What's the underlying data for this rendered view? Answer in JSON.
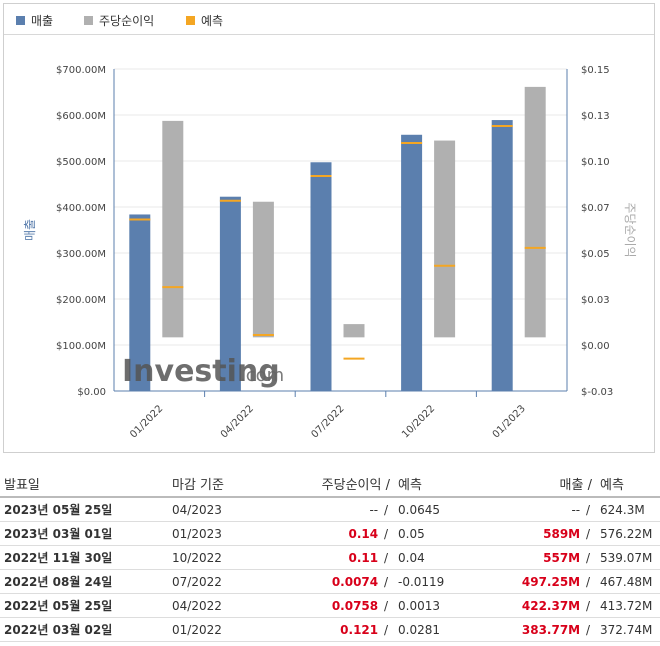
{
  "legend": [
    {
      "label": "매출",
      "color": "#5b7fae"
    },
    {
      "label": "주당순이익",
      "color": "#b0b0b0"
    },
    {
      "label": "예측",
      "color": "#f4a623"
    }
  ],
  "watermark": {
    "text": "Investing",
    "suffix": ".com"
  },
  "chart_data": {
    "type": "bar",
    "categories": [
      "01/2022",
      "04/2022",
      "07/2022",
      "10/2022",
      "01/2023"
    ],
    "left_axis": {
      "title": "매출",
      "ticks": [
        "$700.00M",
        "$600.00M",
        "$500.00M",
        "$400.00M",
        "$300.00M",
        "$200.00M",
        "$100.00M",
        "$0.00"
      ],
      "ylim": [
        0,
        700
      ]
    },
    "right_axis": {
      "title": "주당순이익",
      "ticks": [
        "$0.15",
        "$0.13",
        "$0.10",
        "$0.07",
        "$0.05",
        "$0.03",
        "$0.00",
        "$-0.03"
      ],
      "ylim": [
        -0.03,
        0.15
      ]
    },
    "series": [
      {
        "name": "매출",
        "axis": "left",
        "color": "#5b7fae",
        "values": [
          383.77,
          422.37,
          497.25,
          557,
          589
        ]
      },
      {
        "name": "주당순이익",
        "axis": "right",
        "color": "#b0b0b0",
        "values": [
          0.121,
          0.0758,
          0.0074,
          0.11,
          0.14
        ]
      },
      {
        "name": "예측",
        "axis": "left",
        "color": "#f4a623",
        "values": [
          372.74,
          413.72,
          467.48,
          539.07,
          576.22
        ]
      },
      {
        "name": "예측",
        "axis": "right",
        "color": "#f4a623",
        "values": [
          0.0281,
          0.0013,
          -0.0119,
          0.04,
          0.05
        ]
      }
    ]
  },
  "table": {
    "headers": {
      "date": "발표일",
      "period": "마감 기준",
      "eps": "주당순이익",
      "eps_forecast": "예측",
      "revenue": "매출",
      "revenue_forecast": "예측",
      "sep": "/"
    },
    "rows": [
      {
        "date": "2023년 05월 25일",
        "period": "04/2023",
        "eps": "--",
        "eps_forecast": "0.0645",
        "revenue": "--",
        "revenue_forecast": "624.3M"
      },
      {
        "date": "2023년 03월 01일",
        "period": "01/2023",
        "eps": "0.14",
        "eps_forecast": "0.05",
        "revenue": "589M",
        "revenue_forecast": "576.22M"
      },
      {
        "date": "2022년 11월 30일",
        "period": "10/2022",
        "eps": "0.11",
        "eps_forecast": "0.04",
        "revenue": "557M",
        "revenue_forecast": "539.07M"
      },
      {
        "date": "2022년 08월 24일",
        "period": "07/2022",
        "eps": "0.0074",
        "eps_forecast": "-0.0119",
        "revenue": "497.25M",
        "revenue_forecast": "467.48M"
      },
      {
        "date": "2022년 05월 25일",
        "period": "04/2022",
        "eps": "0.0758",
        "eps_forecast": "0.0013",
        "revenue": "422.37M",
        "revenue_forecast": "413.72M"
      },
      {
        "date": "2022년 03월 02일",
        "period": "01/2022",
        "eps": "0.121",
        "eps_forecast": "0.0281",
        "revenue": "383.77M",
        "revenue_forecast": "372.74M"
      }
    ]
  }
}
